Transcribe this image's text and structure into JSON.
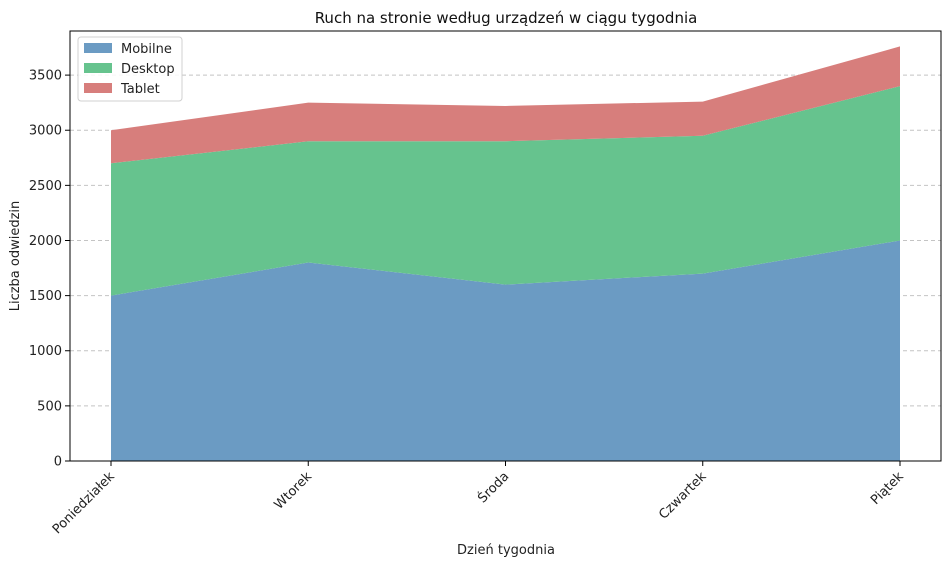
{
  "chart_data": {
    "type": "area",
    "stacked": true,
    "title": "Ruch na stronie według urządzeń w ciągu tygodnia",
    "xlabel": "Dzień tygodnia",
    "ylabel": "Liczba odwiedzin",
    "categories": [
      "Poniedziałek",
      "Wtorek",
      "Środa",
      "Czwartek",
      "Piątek"
    ],
    "series": [
      {
        "name": "Mobilne",
        "values": [
          1500,
          1800,
          1600,
          1700,
          2000
        ],
        "color": "#6b9bc3"
      },
      {
        "name": "Desktop",
        "values": [
          1200,
          1100,
          1300,
          1250,
          1400
        ],
        "color": "#66c38e"
      },
      {
        "name": "Tablet",
        "values": [
          300,
          350,
          320,
          310,
          360
        ],
        "color": "#d77e7c"
      }
    ],
    "ylim": [
      0,
      3900
    ],
    "yticks": [
      0,
      500,
      1000,
      1500,
      2000,
      2500,
      3000,
      3500
    ],
    "grid": "y-dashed",
    "legend": "top-left",
    "x_tick_rotation": 45
  }
}
